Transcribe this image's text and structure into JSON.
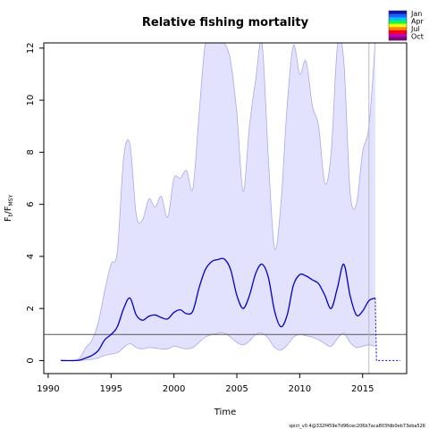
{
  "chart_data": {
    "type": "line",
    "title": "Relative fishing mortality",
    "xlabel": "Time",
    "ylabel_main": "F",
    "ylabel_sub_t": "t",
    "ylabel_sub_msy": "MSY",
    "xlim": [
      1990,
      2018
    ],
    "ylim": [
      -0.5,
      12.2
    ],
    "x_ticks": [
      1990,
      1995,
      2000,
      2005,
      2010,
      2015
    ],
    "y_ticks": [
      0,
      2,
      4,
      6,
      8,
      10,
      12
    ],
    "reference_line_y": 1,
    "vertical_line_x": 2015.5,
    "legend_position": "top-right",
    "legend": [
      "Jan",
      "Apr",
      "Jul",
      "Oct"
    ],
    "legend_colors": [
      "#1010b0",
      "#2060ff",
      "#00c0ff",
      "#00ff40",
      "#ffff00",
      "#ff8000",
      "#ff0000",
      "#c000c0",
      "#800080"
    ],
    "colors": {
      "line": "#0000cc",
      "band": "#e2e2ff",
      "band_edge": "#a8a8ee",
      "refline": "#555555",
      "vline": "#bbbbbb"
    },
    "series": [
      {
        "role": "estimate",
        "x": [
          1991,
          1992,
          1992.5,
          1993,
          1993.5,
          1994,
          1994.5,
          1995,
          1995.5,
          1996,
          1996.5,
          1997,
          1997.5,
          1998,
          1998.5,
          1999,
          1999.5,
          2000,
          2000.5,
          2001,
          2001.5,
          2002,
          2002.5,
          2003,
          2003.5,
          2004,
          2004.5,
          2005,
          2005.5,
          2006,
          2006.5,
          2007,
          2007.5,
          2008,
          2008.5,
          2009,
          2009.5,
          2010,
          2010.5,
          2011,
          2011.5,
          2012,
          2012.5,
          2013,
          2013.5,
          2014,
          2014.5,
          2015,
          2015.5,
          2016
        ],
        "y": [
          0.0,
          0.0,
          0.02,
          0.1,
          0.2,
          0.4,
          0.8,
          1.0,
          1.3,
          2.0,
          2.4,
          1.75,
          1.55,
          1.7,
          1.75,
          1.65,
          1.6,
          1.85,
          1.95,
          1.8,
          1.9,
          2.8,
          3.5,
          3.8,
          3.88,
          3.9,
          3.5,
          2.5,
          2.0,
          2.5,
          3.35,
          3.7,
          3.2,
          1.9,
          1.3,
          1.75,
          2.9,
          3.3,
          3.25,
          3.1,
          2.95,
          2.5,
          2.0,
          2.8,
          3.7,
          2.5,
          1.75,
          1.9,
          2.3,
          2.4
        ]
      },
      {
        "role": "upper",
        "x": [
          1991,
          1992,
          1992.5,
          1993,
          1993.5,
          1994,
          1994.5,
          1995,
          1995.5,
          1996,
          1996.5,
          1997,
          1997.5,
          1998,
          1998.5,
          1999,
          1999.5,
          2000,
          2000.5,
          2001,
          2001.5,
          2002,
          2002.5,
          2003,
          2003.5,
          2004,
          2004.5,
          2005,
          2005.5,
          2006,
          2006.5,
          2007,
          2007.5,
          2008,
          2008.5,
          2009,
          2009.5,
          2010,
          2010.5,
          2011,
          2011.5,
          2012,
          2012.5,
          2013,
          2013.5,
          2014,
          2014.5,
          2015,
          2015.5,
          2016
        ],
        "y": [
          0.0,
          0.0,
          0.1,
          0.5,
          0.8,
          1.5,
          2.7,
          3.7,
          4.2,
          7.8,
          8.3,
          5.6,
          5.4,
          6.2,
          5.9,
          6.3,
          5.5,
          7.0,
          7.0,
          7.3,
          6.6,
          9.5,
          12.2,
          12.2,
          12.2,
          12.2,
          11.5,
          9.5,
          6.5,
          9.0,
          10.8,
          12.2,
          7.8,
          4.3,
          6.0,
          9.8,
          12.1,
          11.0,
          11.5,
          9.8,
          9.0,
          6.8,
          8.0,
          12.1,
          11.5,
          6.5,
          6.0,
          8.0,
          9.0,
          12.2
        ]
      },
      {
        "role": "lower",
        "x": [
          1991,
          1992,
          1992.5,
          1993,
          1993.5,
          1994,
          1994.5,
          1995,
          1995.5,
          1996,
          1996.5,
          1997,
          1997.5,
          1998,
          1998.5,
          1999,
          1999.5,
          2000,
          2000.5,
          2001,
          2001.5,
          2002,
          2002.5,
          2003,
          2003.5,
          2004,
          2004.5,
          2005,
          2005.5,
          2006,
          2006.5,
          2007,
          2007.5,
          2008,
          2008.5,
          2009,
          2009.5,
          2010,
          2010.5,
          2011,
          2011.5,
          2012,
          2012.5,
          2013,
          2013.5,
          2014,
          2014.5,
          2015,
          2015.5,
          2016
        ],
        "y": [
          0.0,
          0.0,
          0.0,
          0.02,
          0.05,
          0.1,
          0.2,
          0.25,
          0.3,
          0.5,
          0.65,
          0.5,
          0.45,
          0.5,
          0.48,
          0.45,
          0.45,
          0.55,
          0.5,
          0.45,
          0.5,
          0.7,
          0.9,
          1.0,
          1.05,
          1.05,
          0.9,
          0.7,
          0.6,
          0.75,
          1.0,
          1.05,
          0.85,
          0.5,
          0.4,
          0.6,
          0.9,
          1.0,
          0.95,
          0.9,
          0.8,
          0.65,
          0.55,
          0.85,
          1.05,
          0.7,
          0.5,
          0.55,
          0.6,
          0.55
        ]
      },
      {
        "role": "forecast",
        "x": [
          2016,
          2016.1,
          2018
        ],
        "y": [
          2.4,
          0.0,
          0.0
        ]
      }
    ]
  },
  "footer_text": "spict_v0.4@332f459e7d96cec206b7aca803fdb0eb73eba526"
}
